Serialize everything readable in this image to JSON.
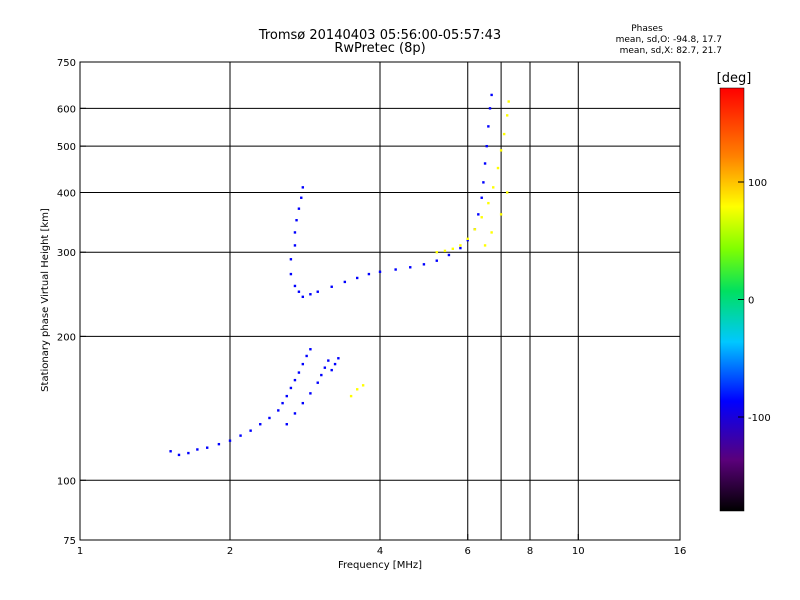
{
  "chart_data": {
    "type": "scatter",
    "title": "Tromsø 20140403 05:56:00-05:57:43",
    "subtitle": "RwPretec (8p)",
    "xlabel": "Frequency [MHz]",
    "ylabel": "Stationary phase Virtual Height [km]",
    "x_scale": "log",
    "y_scale": "log",
    "xlim": [
      1,
      16
    ],
    "ylim": [
      75,
      750
    ],
    "x_ticks": [
      1,
      2,
      4,
      6,
      8,
      10,
      16
    ],
    "y_ticks": [
      75,
      100,
      200,
      300,
      400,
      500,
      600,
      750
    ],
    "grid_x": [
      2,
      4,
      6,
      7,
      8,
      10
    ],
    "grid_y": [
      100,
      200,
      300,
      400,
      500,
      600
    ],
    "stats": {
      "heading": "Phases",
      "line_o": "mean, sd,O: -94.8, 17.7",
      "line_x": "mean, sd,X:  82.7, 21.7"
    },
    "colorbar": {
      "label": "[deg]",
      "range": [
        -180,
        180
      ],
      "ticks": [
        100,
        0,
        -100
      ],
      "colormap": "rainbow: black-purple-blue-cyan-green-yellow-orange-red"
    },
    "series": [
      {
        "phase": -100,
        "points": [
          [
            1.52,
            115
          ],
          [
            1.58,
            113
          ],
          [
            1.65,
            114
          ],
          [
            1.72,
            116
          ],
          [
            1.8,
            117
          ],
          [
            1.9,
            119
          ],
          [
            2.0,
            121
          ],
          [
            2.1,
            124
          ],
          [
            2.2,
            127
          ],
          [
            2.3,
            131
          ],
          [
            2.4,
            135
          ],
          [
            2.5,
            140
          ],
          [
            2.55,
            145
          ],
          [
            2.6,
            150
          ],
          [
            2.65,
            156
          ],
          [
            2.7,
            162
          ],
          [
            2.75,
            168
          ],
          [
            2.8,
            175
          ],
          [
            2.85,
            182
          ],
          [
            2.9,
            188
          ],
          [
            2.6,
            131
          ],
          [
            2.7,
            138
          ],
          [
            2.8,
            145
          ],
          [
            2.9,
            152
          ],
          [
            3.0,
            160
          ],
          [
            3.05,
            166
          ],
          [
            3.1,
            172
          ],
          [
            3.15,
            178
          ],
          [
            3.2,
            170
          ],
          [
            3.25,
            175
          ],
          [
            3.3,
            180
          ],
          [
            2.65,
            270
          ],
          [
            2.65,
            290
          ],
          [
            2.7,
            310
          ],
          [
            2.7,
            330
          ],
          [
            2.72,
            350
          ],
          [
            2.75,
            370
          ],
          [
            2.78,
            390
          ],
          [
            2.8,
            410
          ],
          [
            2.7,
            255
          ],
          [
            2.75,
            248
          ],
          [
            2.8,
            242
          ],
          [
            2.9,
            245
          ],
          [
            3.0,
            248
          ],
          [
            3.2,
            254
          ],
          [
            3.4,
            260
          ],
          [
            3.6,
            265
          ],
          [
            3.8,
            270
          ],
          [
            4.0,
            273
          ],
          [
            4.3,
            276
          ],
          [
            4.6,
            279
          ],
          [
            4.9,
            283
          ],
          [
            5.2,
            288
          ],
          [
            5.5,
            296
          ],
          [
            5.8,
            306
          ],
          [
            6.0,
            318
          ],
          [
            6.2,
            335
          ],
          [
            6.3,
            360
          ],
          [
            6.4,
            390
          ],
          [
            6.45,
            420
          ],
          [
            6.5,
            460
          ],
          [
            6.55,
            500
          ],
          [
            6.6,
            550
          ],
          [
            6.65,
            600
          ],
          [
            6.7,
            640
          ]
        ]
      },
      {
        "phase": 100,
        "points": [
          [
            5.2,
            300
          ],
          [
            5.4,
            302
          ],
          [
            5.6,
            305
          ],
          [
            5.8,
            310
          ],
          [
            6.0,
            320
          ],
          [
            6.2,
            335
          ],
          [
            6.4,
            355
          ],
          [
            6.6,
            380
          ],
          [
            6.75,
            410
          ],
          [
            6.9,
            450
          ],
          [
            7.0,
            490
          ],
          [
            7.1,
            530
          ],
          [
            7.2,
            580
          ],
          [
            7.25,
            620
          ],
          [
            6.5,
            310
          ],
          [
            6.7,
            330
          ],
          [
            7.0,
            360
          ],
          [
            7.2,
            400
          ],
          [
            3.6,
            155
          ],
          [
            3.7,
            158
          ],
          [
            3.5,
            150
          ]
        ]
      }
    ]
  }
}
